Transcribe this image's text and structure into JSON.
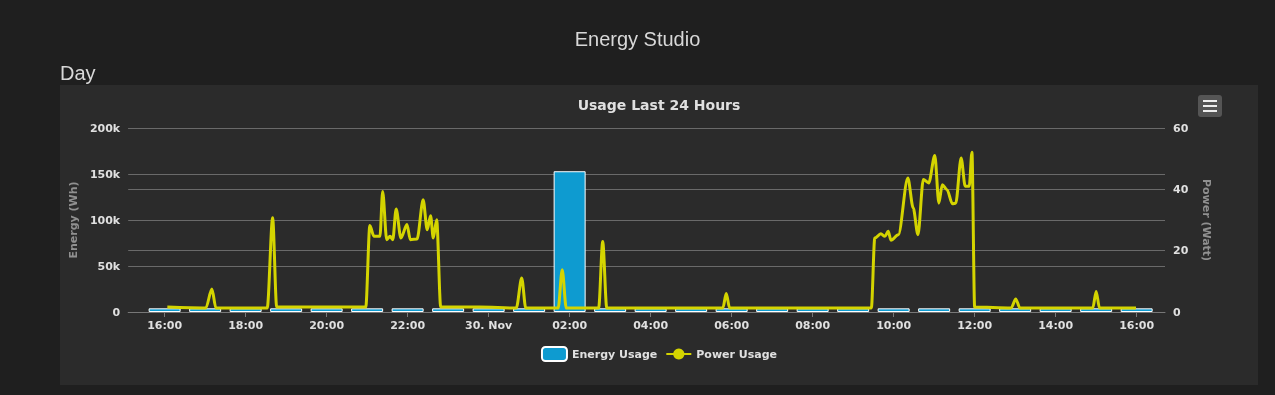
{
  "chart_data": {
    "type": "bar",
    "title": "Usage Last 24 Hours",
    "annotations": [
      "Energy Studio",
      "Day"
    ],
    "ylabel": "Energy (Wh)",
    "y2label": "Power (Watt)",
    "x": [
      "--11-29T16:00",
      "--11-29T17:00",
      "--11-29T18:00",
      "--11-29T19:00",
      "--11-29T20:00",
      "--11-29T21:00",
      "--11-29T22:00",
      "--11-29T23:00",
      "--11-30T00:00",
      "--11-30T01:00",
      "--11-30T02:00",
      "--11-30T03:00",
      "--11-30T04:00",
      "--11-30T05:00",
      "--11-30T06:00",
      "--11-30T07:00",
      "--11-30T08:00",
      "--11-30T09:00",
      "--11-30T10:00",
      "--11-30T11:00",
      "--11-30T12:00",
      "--11-30T13:00",
      "--11-30T14:00",
      "--11-30T15:00",
      "--11-30T16:00"
    ],
    "xlim": [
      "--11-29T15:06",
      "--11-30T16:42"
    ],
    "xticks": [
      {
        "value": "--11-29T16:00",
        "label": "16:00"
      },
      {
        "value": "--11-29T18:00",
        "label": "18:00"
      },
      {
        "value": "--11-29T20:00",
        "label": "20:00"
      },
      {
        "value": "--11-29T22:00",
        "label": "22:00"
      },
      {
        "value": "--11-30T00:00",
        "label": "30. Nov"
      },
      {
        "value": "--11-30T02:00",
        "label": "02:00"
      },
      {
        "value": "--11-30T04:00",
        "label": "04:00"
      },
      {
        "value": "--11-30T06:00",
        "label": "06:00"
      },
      {
        "value": "--11-30T08:00",
        "label": "08:00"
      },
      {
        "value": "--11-30T10:00",
        "label": "10:00"
      },
      {
        "value": "--11-30T12:00",
        "label": "12:00"
      },
      {
        "value": "--11-30T14:00",
        "label": "14:00"
      },
      {
        "value": "--11-30T16:00",
        "label": "16:00"
      }
    ],
    "ylim": [
      0,
      200000
    ],
    "yticks": [
      0,
      {
        "value": 50000,
        "label": "50k"
      },
      {
        "value": 100000,
        "label": "100k"
      },
      {
        "value": 150000,
        "label": "150k"
      },
      {
        "value": 200000,
        "label": "200k"
      }
    ],
    "y2lim": [
      0,
      60
    ],
    "y2ticks": [
      0,
      20,
      40,
      60
    ],
    "series": [
      {
        "name": "Energy Usage",
        "color": "#0e9bd0",
        "values": [
          4000,
          4000,
          4000,
          4000,
          4000,
          4000,
          4000,
          4000,
          4000,
          4000,
          153000,
          4000,
          4000,
          4000,
          4000,
          4000,
          4000,
          4000,
          4000,
          4000,
          4000,
          4000,
          4000,
          4000,
          4000
        ]
      },
      {
        "name": "Power Usage",
        "type": "line",
        "axis": "y2",
        "color": "#d4d400",
        "x": [
          "--11-29T16:04",
          "--11-29T17:01",
          "--11-29T17:10",
          "--11-29T17:16",
          "--11-29T18:32",
          "--11-29T18:40",
          "--11-29T18:46",
          "--11-29T20:58",
          "--11-29T21:04",
          "--11-29T21:10",
          "--11-29T21:19",
          "--11-29T21:23",
          "--11-29T21:29",
          "--11-29T21:34",
          "--11-29T21:38",
          "--11-29T21:43",
          "--11-29T21:50",
          "--11-29T21:59",
          "--11-29T22:04",
          "--11-29T22:14",
          "--11-29T22:23",
          "--11-29T22:29",
          "--11-29T22:34",
          "--11-29T22:38",
          "--11-29T22:43",
          "--11-29T22:49",
          "--11-29T23:46",
          "--11-30T00:41",
          "--11-30T00:49",
          "--11-30T00:55",
          "--11-30T01:43",
          "--11-30T01:49",
          "--11-30T01:55",
          "--11-30T02:43",
          "--11-30T02:49",
          "--11-30T02:55",
          "--11-30T05:47",
          "--11-30T05:52",
          "--11-30T05:57",
          "--11-30T09:27",
          "--11-30T09:32",
          "--11-30T09:41",
          "--11-30T09:47",
          "--11-30T09:52",
          "--11-30T09:56",
          "--11-30T10:07",
          "--11-30T10:21",
          "--11-30T10:29",
          "--11-30T10:36",
          "--11-30T10:44",
          "--11-30T10:52",
          "--11-30T11:01",
          "--11-30T11:07",
          "--11-30T11:12",
          "--11-30T11:19",
          "--11-30T11:27",
          "--11-30T11:32",
          "--11-30T11:40",
          "--11-30T11:46",
          "--11-30T11:52",
          "--11-30T11:56",
          "--11-30T12:00",
          "--11-30T12:54",
          "--11-30T13:01",
          "--11-30T13:07",
          "--11-30T14:55",
          "--11-30T15:00",
          "--11-30T15:05",
          "--11-30T15:59"
        ],
        "values": [
          1.6,
          1.3,
          7.5,
          1.3,
          1.3,
          30.7,
          1.6,
          1.6,
          28.2,
          24.7,
          24.7,
          39.3,
          23.6,
          24.7,
          23.6,
          33.6,
          24.1,
          28.5,
          23.6,
          23.8,
          36.6,
          26.8,
          31.4,
          24.1,
          30.1,
          1.6,
          1.6,
          1.3,
          11.1,
          1.3,
          1.3,
          13.8,
          1.3,
          1.3,
          23.0,
          1.3,
          1.3,
          6.0,
          1.3,
          1.3,
          24.1,
          25.5,
          24.7,
          26.3,
          23.4,
          25.2,
          43.7,
          33.9,
          25.2,
          43.2,
          42.1,
          51.0,
          35.5,
          41.5,
          39.9,
          35.3,
          35.5,
          50.2,
          41.0,
          41.0,
          52.1,
          1.6,
          1.3,
          4.2,
          1.3,
          1.3,
          6.7,
          1.3,
          1.3
        ]
      }
    ],
    "grid": "y",
    "legend": "bottom"
  }
}
